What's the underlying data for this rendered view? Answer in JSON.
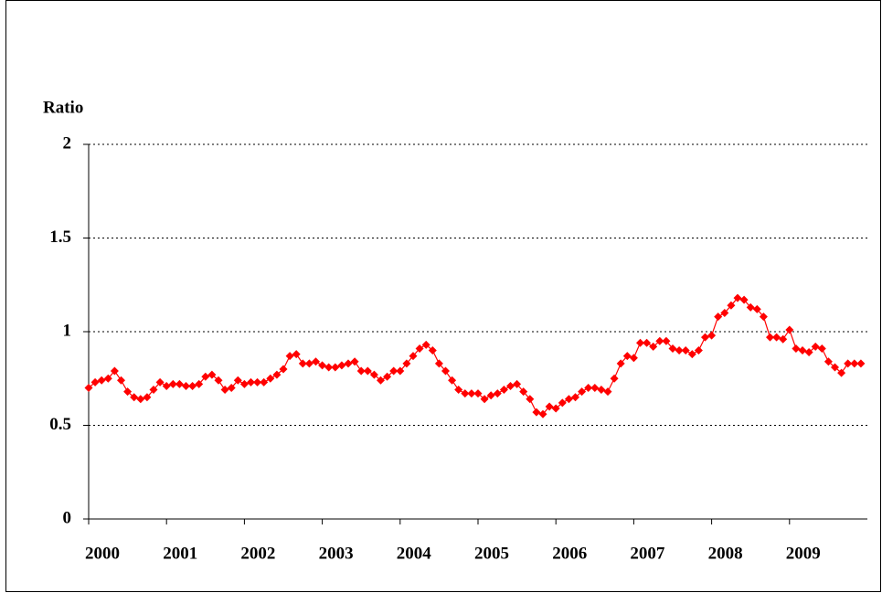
{
  "chart_data": {
    "type": "line",
    "y_label": "Ratio",
    "categories": [
      "2000",
      null,
      null,
      null,
      null,
      null,
      null,
      null,
      null,
      null,
      null,
      null,
      "2001",
      null,
      null,
      null,
      null,
      null,
      null,
      null,
      null,
      null,
      null,
      null,
      "2002",
      null,
      null,
      null,
      null,
      null,
      null,
      null,
      null,
      null,
      null,
      null,
      "2003",
      null,
      null,
      null,
      null,
      null,
      null,
      null,
      null,
      null,
      null,
      null,
      "2004",
      null,
      null,
      null,
      null,
      null,
      null,
      null,
      null,
      null,
      null,
      null,
      "2005",
      null,
      null,
      null,
      null,
      null,
      null,
      null,
      null,
      null,
      null,
      null,
      "2006",
      null,
      null,
      null,
      null,
      null,
      null,
      null,
      null,
      null,
      null,
      null,
      "2007",
      null,
      null,
      null,
      null,
      null,
      null,
      null,
      null,
      null,
      null,
      null,
      "2008",
      null,
      null,
      null,
      null,
      null,
      null,
      null,
      null,
      null,
      null,
      null,
      "2009",
      null,
      null,
      null,
      null,
      null,
      null,
      null,
      null,
      null,
      null,
      null
    ],
    "values": [
      0.7,
      0.73,
      0.74,
      0.75,
      0.79,
      0.74,
      0.68,
      0.65,
      0.64,
      0.65,
      0.69,
      0.73,
      0.71,
      0.72,
      0.72,
      0.71,
      0.71,
      0.72,
      0.76,
      0.77,
      0.74,
      0.69,
      0.7,
      0.74,
      0.72,
      0.73,
      0.73,
      0.73,
      0.75,
      0.77,
      0.8,
      0.87,
      0.88,
      0.83,
      0.83,
      0.84,
      0.82,
      0.81,
      0.81,
      0.82,
      0.83,
      0.84,
      0.79,
      0.79,
      0.77,
      0.74,
      0.76,
      0.79,
      0.79,
      0.83,
      0.87,
      0.91,
      0.93,
      0.9,
      0.83,
      0.79,
      0.74,
      0.69,
      0.67,
      0.67,
      0.67,
      0.64,
      0.66,
      0.67,
      0.69,
      0.71,
      0.72,
      0.68,
      0.64,
      0.57,
      0.56,
      0.6,
      0.59,
      0.62,
      0.64,
      0.65,
      0.68,
      0.7,
      0.7,
      0.69,
      0.68,
      0.75,
      0.83,
      0.87,
      0.86,
      0.94,
      0.94,
      0.92,
      0.95,
      0.95,
      0.91,
      0.9,
      0.9,
      0.88,
      0.9,
      0.97,
      0.98,
      1.08,
      1.1,
      1.14,
      1.18,
      1.17,
      1.13,
      1.12,
      1.08,
      0.97,
      0.97,
      0.96,
      1.01,
      0.91,
      0.9,
      0.89,
      0.92,
      0.91,
      0.84,
      0.81,
      0.78,
      0.83,
      0.83,
      0.83
    ],
    "color": "#ff0000",
    "marker": "diamond",
    "ylim": [
      0,
      2
    ],
    "yticks": [
      0,
      0.5,
      1,
      1.5,
      2
    ],
    "grid": true
  }
}
